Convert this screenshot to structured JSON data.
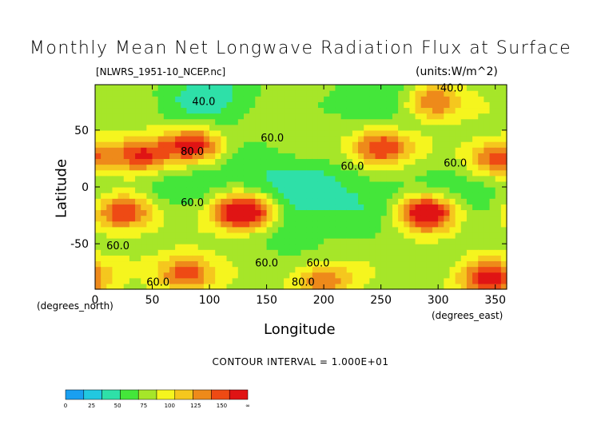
{
  "chart_data": {
    "type": "heatmap",
    "title": "Monthly Mean Net Longwave Radiation Flux at Surface",
    "source_label": "[NLWRS_1951-10_NCEP.nc]",
    "units_label": "(units:W/m^2)",
    "xlabel": "Longitude",
    "ylabel": "Latitude",
    "x_unit_label": "(degrees_east)",
    "y_unit_label": "(degrees_north)",
    "xlim": [
      0,
      360
    ],
    "ylim": [
      -90,
      90
    ],
    "x_ticks": [
      0,
      50,
      100,
      150,
      200,
      250,
      300,
      350
    ],
    "y_ticks": [
      50,
      0,
      -50
    ],
    "contour_interval_text": "CONTOUR INTERVAL = 1.000E+01",
    "contour_labels": [
      {
        "text": "40.0",
        "lon": 95,
        "lat": 72
      },
      {
        "text": "40.0",
        "lon": 312,
        "lat": 84
      },
      {
        "text": "60.0",
        "lon": 155,
        "lat": 40
      },
      {
        "text": "60.0",
        "lon": 225,
        "lat": 15
      },
      {
        "text": "60.0",
        "lon": 315,
        "lat": 18
      },
      {
        "text": "80.0",
        "lon": 85,
        "lat": 28
      },
      {
        "text": "60.0",
        "lon": 85,
        "lat": -17
      },
      {
        "text": "60.0",
        "lon": 20,
        "lat": -55
      },
      {
        "text": "60.0",
        "lon": 150,
        "lat": -70
      },
      {
        "text": "60.0",
        "lon": 195,
        "lat": -70
      },
      {
        "text": "60.0",
        "lon": 55,
        "lat": -87
      },
      {
        "text": "80.0",
        "lon": 182,
        "lat": -87
      }
    ],
    "colorbar": {
      "ticks": [
        "0",
        "25",
        "50",
        "75",
        "100",
        "125",
        "150",
        "∞"
      ],
      "colors": [
        "#1a9ff0",
        "#22c8e0",
        "#2ee0a8",
        "#44e63a",
        "#a6e629",
        "#f5f51e",
        "#f5c71e",
        "#ee8a1a",
        "#ee4a14",
        "#e01414"
      ]
    },
    "features": [
      {
        "lon": 130,
        "lat": -22,
        "value": 155,
        "desc": "maximum"
      },
      {
        "lon": 25,
        "lat": -22,
        "value": 120
      },
      {
        "lon": 290,
        "lat": -22,
        "value": 140
      },
      {
        "lon": 40,
        "lat": 28,
        "value": 120
      },
      {
        "lon": 85,
        "lat": 37,
        "value": 120
      },
      {
        "lon": 250,
        "lat": 35,
        "value": 120
      },
      {
        "lon": 350,
        "lat": 25,
        "value": 110
      },
      {
        "lon": 295,
        "lat": 75,
        "value": 110
      },
      {
        "lon": 345,
        "lat": -80,
        "value": 120
      },
      {
        "lon": 80,
        "lat": -75,
        "value": 110
      },
      {
        "lon": 200,
        "lat": -82,
        "value": 100
      },
      {
        "lon": 180,
        "lat": 0,
        "value": 35
      },
      {
        "lon": 240,
        "lat": -12,
        "value": 40
      },
      {
        "lon": 60,
        "lat": 0,
        "value": 45
      },
      {
        "lon": 330,
        "lat": -3,
        "value": 40
      },
      {
        "lon": 100,
        "lat": 80,
        "value": 30
      },
      {
        "lon": 250,
        "lat": 78,
        "value": 35
      },
      {
        "lon": 170,
        "lat": -40,
        "value": 45
      },
      {
        "lon": 130,
        "lat": 10,
        "value": 45
      }
    ],
    "background_value": 58
  }
}
